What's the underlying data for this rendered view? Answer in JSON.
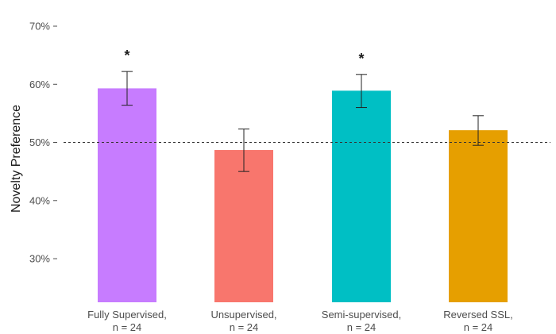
{
  "chart_data": {
    "type": "bar",
    "title": "",
    "xlabel": "",
    "ylabel": "Novelty Preference",
    "ylim": [
      22.5,
      71.5
    ],
    "yticks": [
      30,
      40,
      50,
      60,
      70
    ],
    "ytick_labels": [
      "30%",
      "40%",
      "50%",
      "60%",
      "70%"
    ],
    "grid": false,
    "reference_line": {
      "y": 50,
      "style": "dashed"
    },
    "categories": [
      {
        "line1": "Fully Supervised,",
        "line2": "n = 24"
      },
      {
        "line1": "Unsupervised,",
        "line2": "n = 24"
      },
      {
        "line1": "Semi-supervised,",
        "line2": "n = 24"
      },
      {
        "line1": "Reversed SSL,",
        "line2": "n = 24"
      }
    ],
    "values": [
      59.3,
      48.7,
      58.9,
      52.1
    ],
    "error_low": [
      56.4,
      45.0,
      56.0,
      49.5
    ],
    "error_high": [
      62.2,
      52.3,
      61.7,
      54.6
    ],
    "colors": [
      "#c77cff",
      "#f8766d",
      "#00bfc4",
      "#e69f00"
    ],
    "significance": [
      "*",
      "",
      "*",
      ""
    ]
  }
}
